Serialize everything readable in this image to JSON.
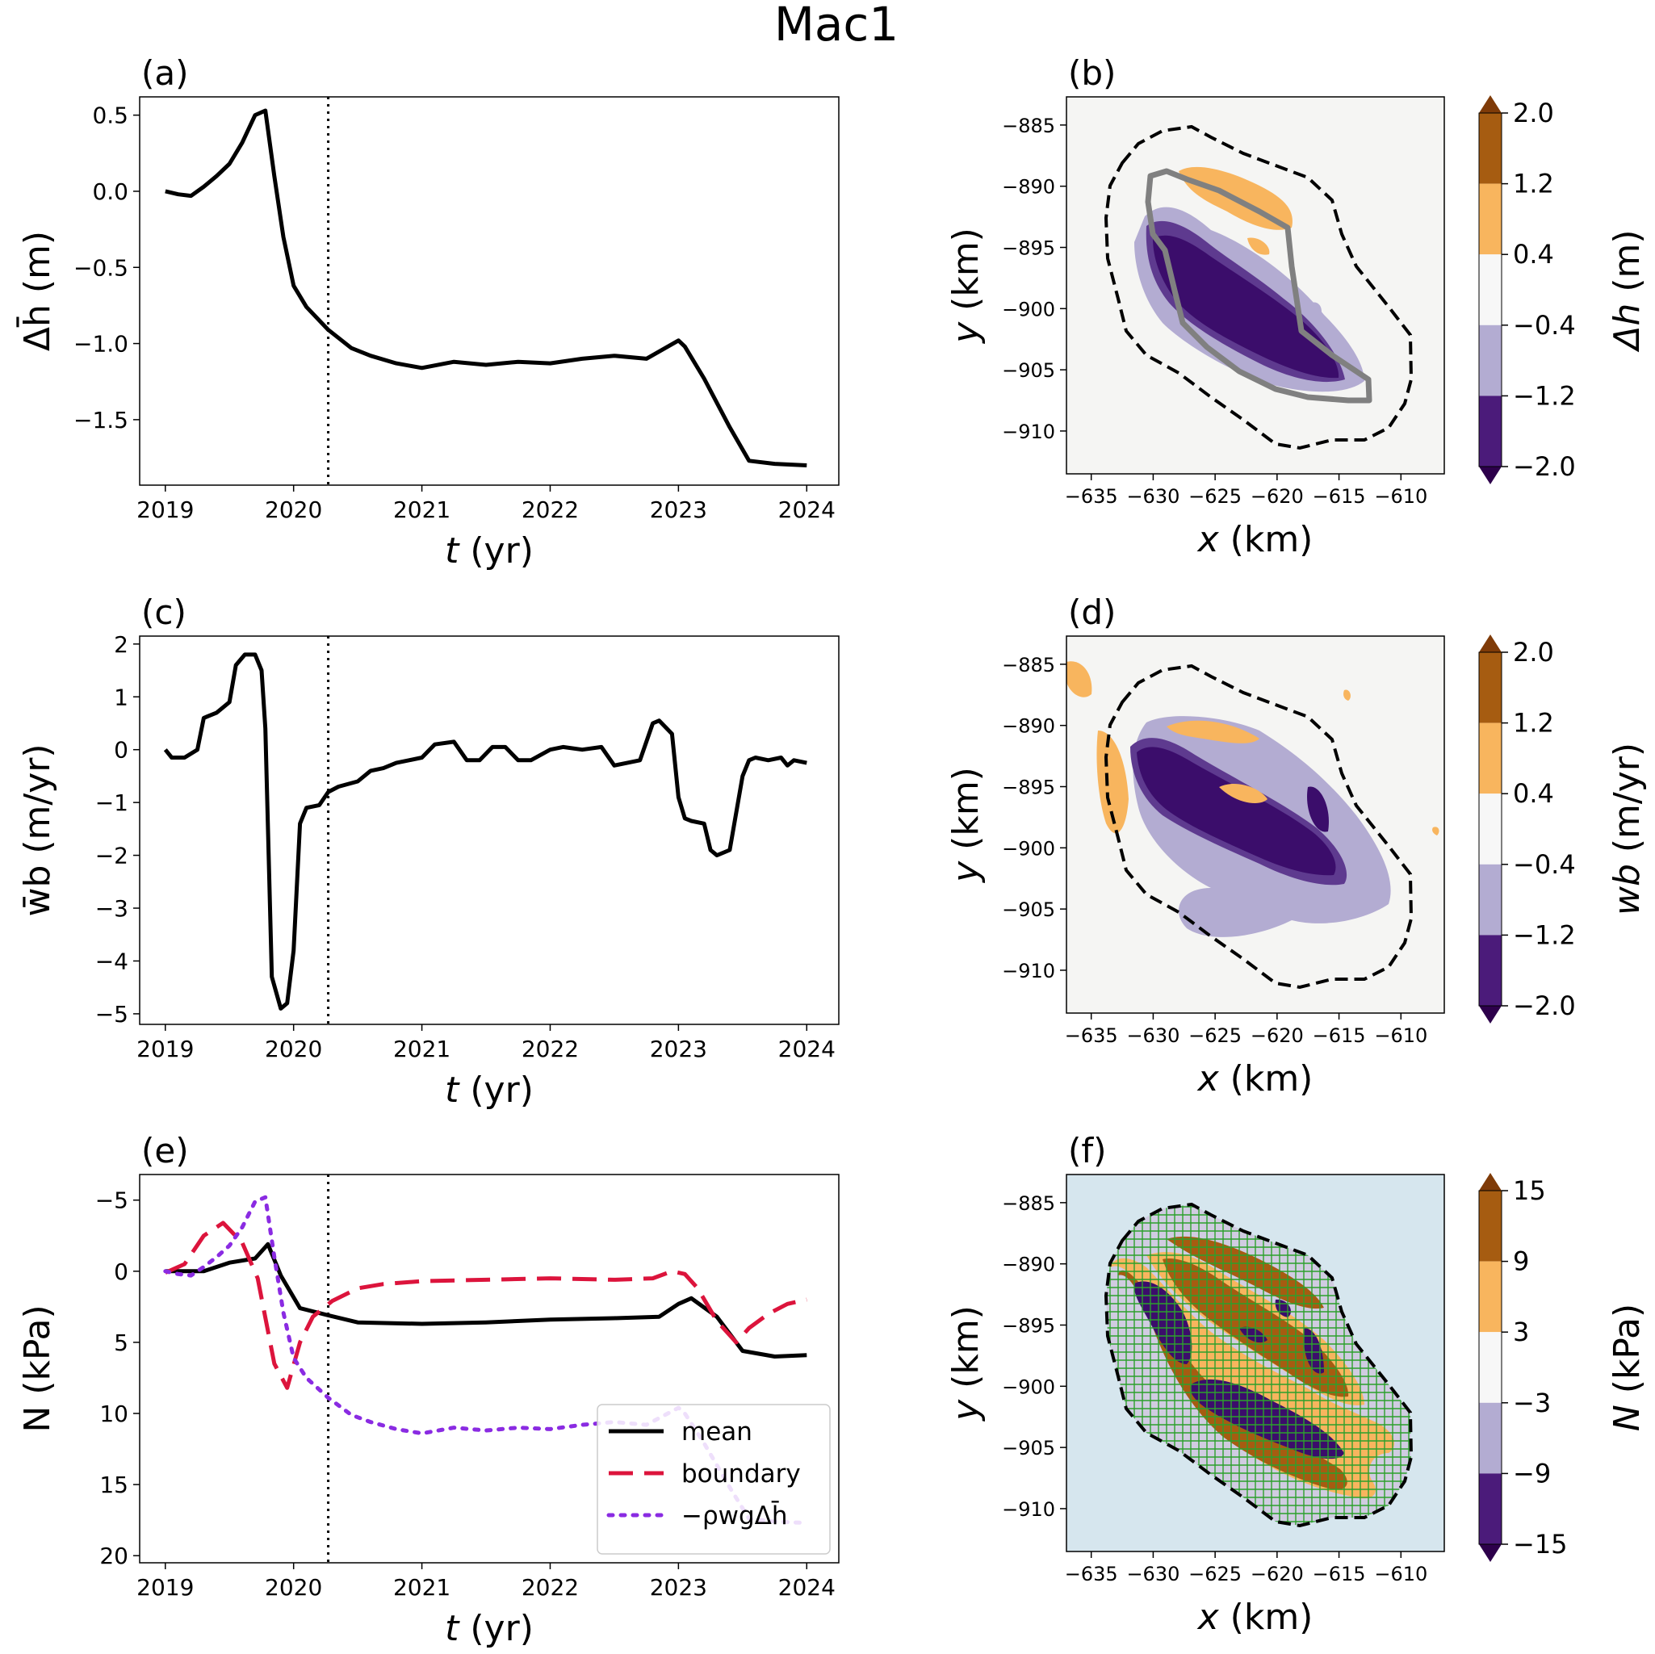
{
  "figure_title": "Mac1",
  "chart_data": [
    {
      "panel": "(a)",
      "type": "line",
      "title": "",
      "xlabel": "t (yr)",
      "ylabel": "Δh̄ (m)",
      "xlim": [
        2018.8,
        2024.25
      ],
      "ylim": [
        -1.93,
        0.62
      ],
      "xticks": [
        2019,
        2020,
        2021,
        2022,
        2023,
        2024
      ],
      "xtick_labels": [
        "2019",
        "2020",
        "2021",
        "2022",
        "2023",
        "2024"
      ],
      "yticks": [
        0.5,
        0.0,
        -0.5,
        -1.0,
        -1.5
      ],
      "ytick_labels": [
        "0.5",
        "0.0",
        "−0.5",
        "−1.0",
        "−1.5"
      ],
      "vline": 2020.27,
      "series": [
        {
          "name": "mean",
          "color": "#000000",
          "dash": "solid",
          "x": [
            2019.0,
            2019.1,
            2019.2,
            2019.3,
            2019.4,
            2019.5,
            2019.6,
            2019.7,
            2019.78,
            2019.85,
            2019.92,
            2020.0,
            2020.1,
            2020.27,
            2020.45,
            2020.6,
            2020.8,
            2021.0,
            2021.25,
            2021.5,
            2021.75,
            2022.0,
            2022.25,
            2022.5,
            2022.75,
            2023.0,
            2023.05,
            2023.2,
            2023.4,
            2023.55,
            2023.75,
            2024.0
          ],
          "y": [
            0.0,
            -0.02,
            -0.03,
            0.03,
            0.1,
            0.18,
            0.32,
            0.5,
            0.53,
            0.1,
            -0.3,
            -0.62,
            -0.76,
            -0.91,
            -1.03,
            -1.08,
            -1.13,
            -1.16,
            -1.12,
            -1.14,
            -1.12,
            -1.13,
            -1.1,
            -1.08,
            -1.1,
            -0.98,
            -1.02,
            -1.23,
            -1.55,
            -1.77,
            -1.79,
            -1.8
          ]
        }
      ]
    },
    {
      "panel": "(c)",
      "type": "line",
      "title": "",
      "xlabel": "t (yr)",
      "ylabel": "w̄b (m/yr)",
      "xlim": [
        2018.8,
        2024.25
      ],
      "ylim": [
        -5.2,
        2.15
      ],
      "xticks": [
        2019,
        2020,
        2021,
        2022,
        2023,
        2024
      ],
      "xtick_labels": [
        "2019",
        "2020",
        "2021",
        "2022",
        "2023",
        "2024"
      ],
      "yticks": [
        2,
        1,
        0,
        -1,
        -2,
        -3,
        -4,
        -5
      ],
      "ytick_labels": [
        "2",
        "1",
        "0",
        "−1",
        "−2",
        "−3",
        "−4",
        "−5"
      ],
      "vline": 2020.27,
      "series": [
        {
          "name": "mean",
          "color": "#000000",
          "dash": "solid",
          "x": [
            2019.0,
            2019.05,
            2019.15,
            2019.25,
            2019.3,
            2019.4,
            2019.5,
            2019.55,
            2019.62,
            2019.7,
            2019.75,
            2019.78,
            2019.83,
            2019.9,
            2019.95,
            2020.0,
            2020.05,
            2020.1,
            2020.2,
            2020.27,
            2020.35,
            2020.5,
            2020.6,
            2020.7,
            2020.8,
            2020.9,
            2021.0,
            2021.1,
            2021.25,
            2021.35,
            2021.45,
            2021.55,
            2021.65,
            2021.75,
            2021.85,
            2022.0,
            2022.1,
            2022.25,
            2022.4,
            2022.5,
            2022.6,
            2022.7,
            2022.8,
            2022.85,
            2022.95,
            2023.0,
            2023.05,
            2023.1,
            2023.2,
            2023.25,
            2023.3,
            2023.4,
            2023.5,
            2023.55,
            2023.6,
            2023.7,
            2023.8,
            2023.85,
            2023.9,
            2024.0
          ],
          "y": [
            0.0,
            -0.15,
            -0.15,
            0.0,
            0.6,
            0.7,
            0.9,
            1.6,
            1.8,
            1.8,
            1.5,
            0.4,
            -4.3,
            -4.9,
            -4.8,
            -3.8,
            -1.4,
            -1.1,
            -1.05,
            -0.8,
            -0.7,
            -0.6,
            -0.4,
            -0.35,
            -0.25,
            -0.2,
            -0.15,
            0.1,
            0.15,
            -0.2,
            -0.2,
            0.05,
            0.05,
            -0.2,
            -0.2,
            0.0,
            0.05,
            0.0,
            0.05,
            -0.3,
            -0.25,
            -0.2,
            0.5,
            0.55,
            0.3,
            -0.9,
            -1.3,
            -1.35,
            -1.4,
            -1.9,
            -2.0,
            -1.9,
            -0.5,
            -0.2,
            -0.15,
            -0.2,
            -0.15,
            -0.3,
            -0.2,
            -0.25
          ]
        }
      ]
    },
    {
      "panel": "(e)",
      "type": "line",
      "title": "",
      "xlabel": "t (yr)",
      "ylabel": "N (kPa)",
      "xlim": [
        2018.8,
        2024.25
      ],
      "ylim": [
        20.5,
        -6.8
      ],
      "y_inverted": true,
      "xticks": [
        2019,
        2020,
        2021,
        2022,
        2023,
        2024
      ],
      "xtick_labels": [
        "2019",
        "2020",
        "2021",
        "2022",
        "2023",
        "2024"
      ],
      "yticks": [
        -5,
        0,
        5,
        10,
        15,
        20
      ],
      "ytick_labels": [
        "−5",
        "0",
        "5",
        "10",
        "15",
        "20"
      ],
      "vline": 2020.27,
      "legend": {
        "position": "lower-right",
        "entries": [
          "mean",
          "boundary",
          "−ρwgΔh̄"
        ]
      },
      "series": [
        {
          "name": "mean",
          "color": "#000000",
          "dash": "solid",
          "x": [
            2019.0,
            2019.3,
            2019.5,
            2019.7,
            2019.8,
            2019.9,
            2020.05,
            2020.27,
            2020.5,
            2021.0,
            2021.5,
            2022.0,
            2022.5,
            2022.85,
            2023.0,
            2023.1,
            2023.3,
            2023.5,
            2023.75,
            2024.0
          ],
          "y": [
            0.0,
            0.0,
            -0.6,
            -0.9,
            -1.9,
            0.3,
            2.6,
            3.1,
            3.6,
            3.7,
            3.6,
            3.4,
            3.3,
            3.2,
            2.3,
            1.9,
            3.2,
            5.6,
            6.0,
            5.9
          ]
        },
        {
          "name": "boundary",
          "color": "#dc143c",
          "dash": "dashed",
          "x": [
            2019.0,
            2019.15,
            2019.3,
            2019.45,
            2019.6,
            2019.72,
            2019.85,
            2019.95,
            2020.05,
            2020.15,
            2020.3,
            2020.5,
            2020.7,
            2021.0,
            2021.5,
            2022.0,
            2022.5,
            2022.8,
            2022.95,
            2023.05,
            2023.15,
            2023.3,
            2023.45,
            2023.55,
            2023.7,
            2023.85,
            2024.0
          ],
          "y": [
            0.1,
            -0.5,
            -2.5,
            -3.4,
            -2.0,
            0.5,
            6.5,
            8.2,
            5.0,
            3.2,
            2.1,
            1.2,
            0.9,
            0.7,
            0.6,
            0.5,
            0.6,
            0.5,
            0.0,
            0.2,
            1.2,
            3.5,
            5.0,
            4.0,
            3.0,
            2.3,
            2.0
          ]
        },
        {
          "name": "−ρwgΔh̄",
          "color": "#8a2be2",
          "dash": "dotted",
          "x": [
            2019.0,
            2019.1,
            2019.2,
            2019.3,
            2019.4,
            2019.5,
            2019.6,
            2019.7,
            2019.78,
            2019.85,
            2019.92,
            2020.0,
            2020.1,
            2020.27,
            2020.45,
            2020.6,
            2020.8,
            2021.0,
            2021.25,
            2021.5,
            2021.75,
            2022.0,
            2022.25,
            2022.5,
            2022.75,
            2023.0,
            2023.05,
            2023.2,
            2023.4,
            2023.55,
            2023.75,
            2024.0
          ],
          "y": [
            0.0,
            0.2,
            0.3,
            -0.3,
            -1.0,
            -1.8,
            -3.1,
            -4.9,
            -5.2,
            -1.0,
            2.9,
            6.1,
            7.5,
            8.9,
            10.1,
            10.6,
            11.1,
            11.4,
            11.0,
            11.2,
            11.0,
            11.1,
            10.8,
            10.6,
            10.8,
            9.6,
            10.0,
            12.1,
            15.2,
            17.4,
            17.6,
            17.7
          ]
        }
      ]
    },
    {
      "panel": "(b)",
      "type": "heatmap",
      "xlabel": "x (km)",
      "ylabel": "y (km)",
      "xlim": [
        -637,
        -606.5
      ],
      "ylim": [
        -913.5,
        -882.7
      ],
      "xticks": [
        -635,
        -630,
        -625,
        -620,
        -615,
        -610
      ],
      "xtick_labels": [
        "−635",
        "−630",
        "−625",
        "−620",
        "−615",
        "−610"
      ],
      "yticks": [
        -885,
        -890,
        -895,
        -900,
        -905,
        -910
      ],
      "ytick_labels": [
        "−885",
        "−890",
        "−895",
        "−900",
        "−905",
        "−910"
      ],
      "colorbar": {
        "label": "Δh (m)",
        "ticks": [
          "2.0",
          "1.2",
          "0.4",
          "−0.4",
          "−1.2",
          "−2.0"
        ]
      },
      "background": "#f5f5f3"
    },
    {
      "panel": "(d)",
      "type": "heatmap",
      "xlabel": "x (km)",
      "ylabel": "y (km)",
      "xlim": [
        -637,
        -606.5
      ],
      "ylim": [
        -913.5,
        -882.7
      ],
      "xticks": [
        -635,
        -630,
        -625,
        -620,
        -615,
        -610
      ],
      "xtick_labels": [
        "−635",
        "−630",
        "−625",
        "−620",
        "−615",
        "−610"
      ],
      "yticks": [
        -885,
        -890,
        -895,
        -900,
        -905,
        -910
      ],
      "ytick_labels": [
        "−885",
        "−890",
        "−895",
        "−900",
        "−905",
        "−910"
      ],
      "colorbar": {
        "label": "wb (m/yr)",
        "ticks": [
          "2.0",
          "1.2",
          "0.4",
          "−0.4",
          "−1.2",
          "−2.0"
        ]
      },
      "background": "#f5f5f3"
    },
    {
      "panel": "(f)",
      "type": "heatmap",
      "xlabel": "x (km)",
      "ylabel": "y (km)",
      "xlim": [
        -637,
        -606.5
      ],
      "ylim": [
        -913.5,
        -882.7
      ],
      "xticks": [
        -635,
        -630,
        -625,
        -620,
        -615,
        -610
      ],
      "xtick_labels": [
        "−635",
        "−630",
        "−625",
        "−620",
        "−615",
        "−610"
      ],
      "yticks": [
        -885,
        -890,
        -895,
        -900,
        -905,
        -910
      ],
      "ytick_labels": [
        "−885",
        "−890",
        "−895",
        "−900",
        "−905",
        "−910"
      ],
      "colorbar": {
        "label": "N (kPa)",
        "ticks": [
          "15",
          "9",
          "3",
          "−3",
          "−9",
          "−15"
        ]
      },
      "background": "#d6e6ee"
    }
  ],
  "colors": {
    "dark_brown": "#a65c11",
    "orange": "#f8b55e",
    "white": "#f7f7f7",
    "light_purple": "#b3acd2",
    "dark_purple": "#4b1b7a",
    "cb_top": "#7f3b08",
    "cb_bottom": "#2d004b",
    "outline_gray": "#808080",
    "grid_green": "#2ca02c"
  }
}
